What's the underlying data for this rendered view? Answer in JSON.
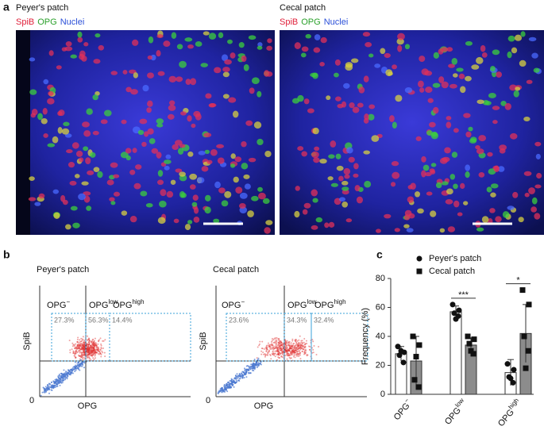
{
  "panel_a": {
    "label": "a",
    "images": [
      {
        "title": "Peyer's patch",
        "stains": [
          "SpiB",
          "OPG",
          "Nuclei"
        ]
      },
      {
        "title": "Cecal patch",
        "stains": [
          "SpiB",
          "OPG",
          "Nuclei"
        ]
      }
    ]
  },
  "panel_b": {
    "label": "b",
    "plots": [
      {
        "title": "Peyer's patch",
        "y_label": "SpiB",
        "x_label": "OPG",
        "origin_label": "0",
        "gates": [
          {
            "name": "OPG",
            "sup": "−",
            "percent": "27.3%"
          },
          {
            "name": "OPG",
            "sup": "low",
            "percent": "56.3%"
          },
          {
            "name": "OPG",
            "sup": "high",
            "percent": "14.4%"
          }
        ]
      },
      {
        "title": "Cecal patch",
        "y_label": "SpiB",
        "x_label": "OPG",
        "origin_label": "0",
        "gates": [
          {
            "name": "OPG",
            "sup": "−",
            "percent": "23.6%"
          },
          {
            "name": "OPG",
            "sup": "low",
            "percent": "34.3%"
          },
          {
            "name": "OPG",
            "sup": "high",
            "percent": "32.4%"
          }
        ]
      }
    ]
  },
  "chart_data": {
    "type": "bar",
    "label": "c",
    "y_label": "Frequency (%)",
    "categories": [
      "OPG",
      "OPG",
      "OPG"
    ],
    "category_superscripts": [
      "−",
      "low",
      "high"
    ],
    "ylim": [
      0,
      80
    ],
    "yticks": [
      0,
      20,
      40,
      60,
      80
    ],
    "series": [
      {
        "name": "Peyer's patch",
        "color": "#ffffff",
        "marker": "circle",
        "values": [
          28,
          57,
          15
        ],
        "errors": [
          5,
          4,
          9
        ],
        "points": [
          [
            33,
            29,
            27,
            22,
            30
          ],
          [
            62,
            58,
            56,
            54,
            52
          ],
          [
            21,
            17,
            12,
            8,
            11
          ]
        ]
      },
      {
        "name": "Cecal patch",
        "color": "#8c8c8c",
        "marker": "square",
        "values": [
          23,
          34,
          42
        ],
        "errors": [
          17,
          5,
          20
        ],
        "points": [
          [
            40,
            34,
            10,
            5,
            26
          ],
          [
            40,
            38,
            35,
            28,
            30
          ],
          [
            72,
            62,
            40,
            30,
            18
          ]
        ]
      }
    ],
    "annotations": [
      {
        "text": "***",
        "category": 1
      },
      {
        "text": "*",
        "category": 2
      }
    ]
  }
}
